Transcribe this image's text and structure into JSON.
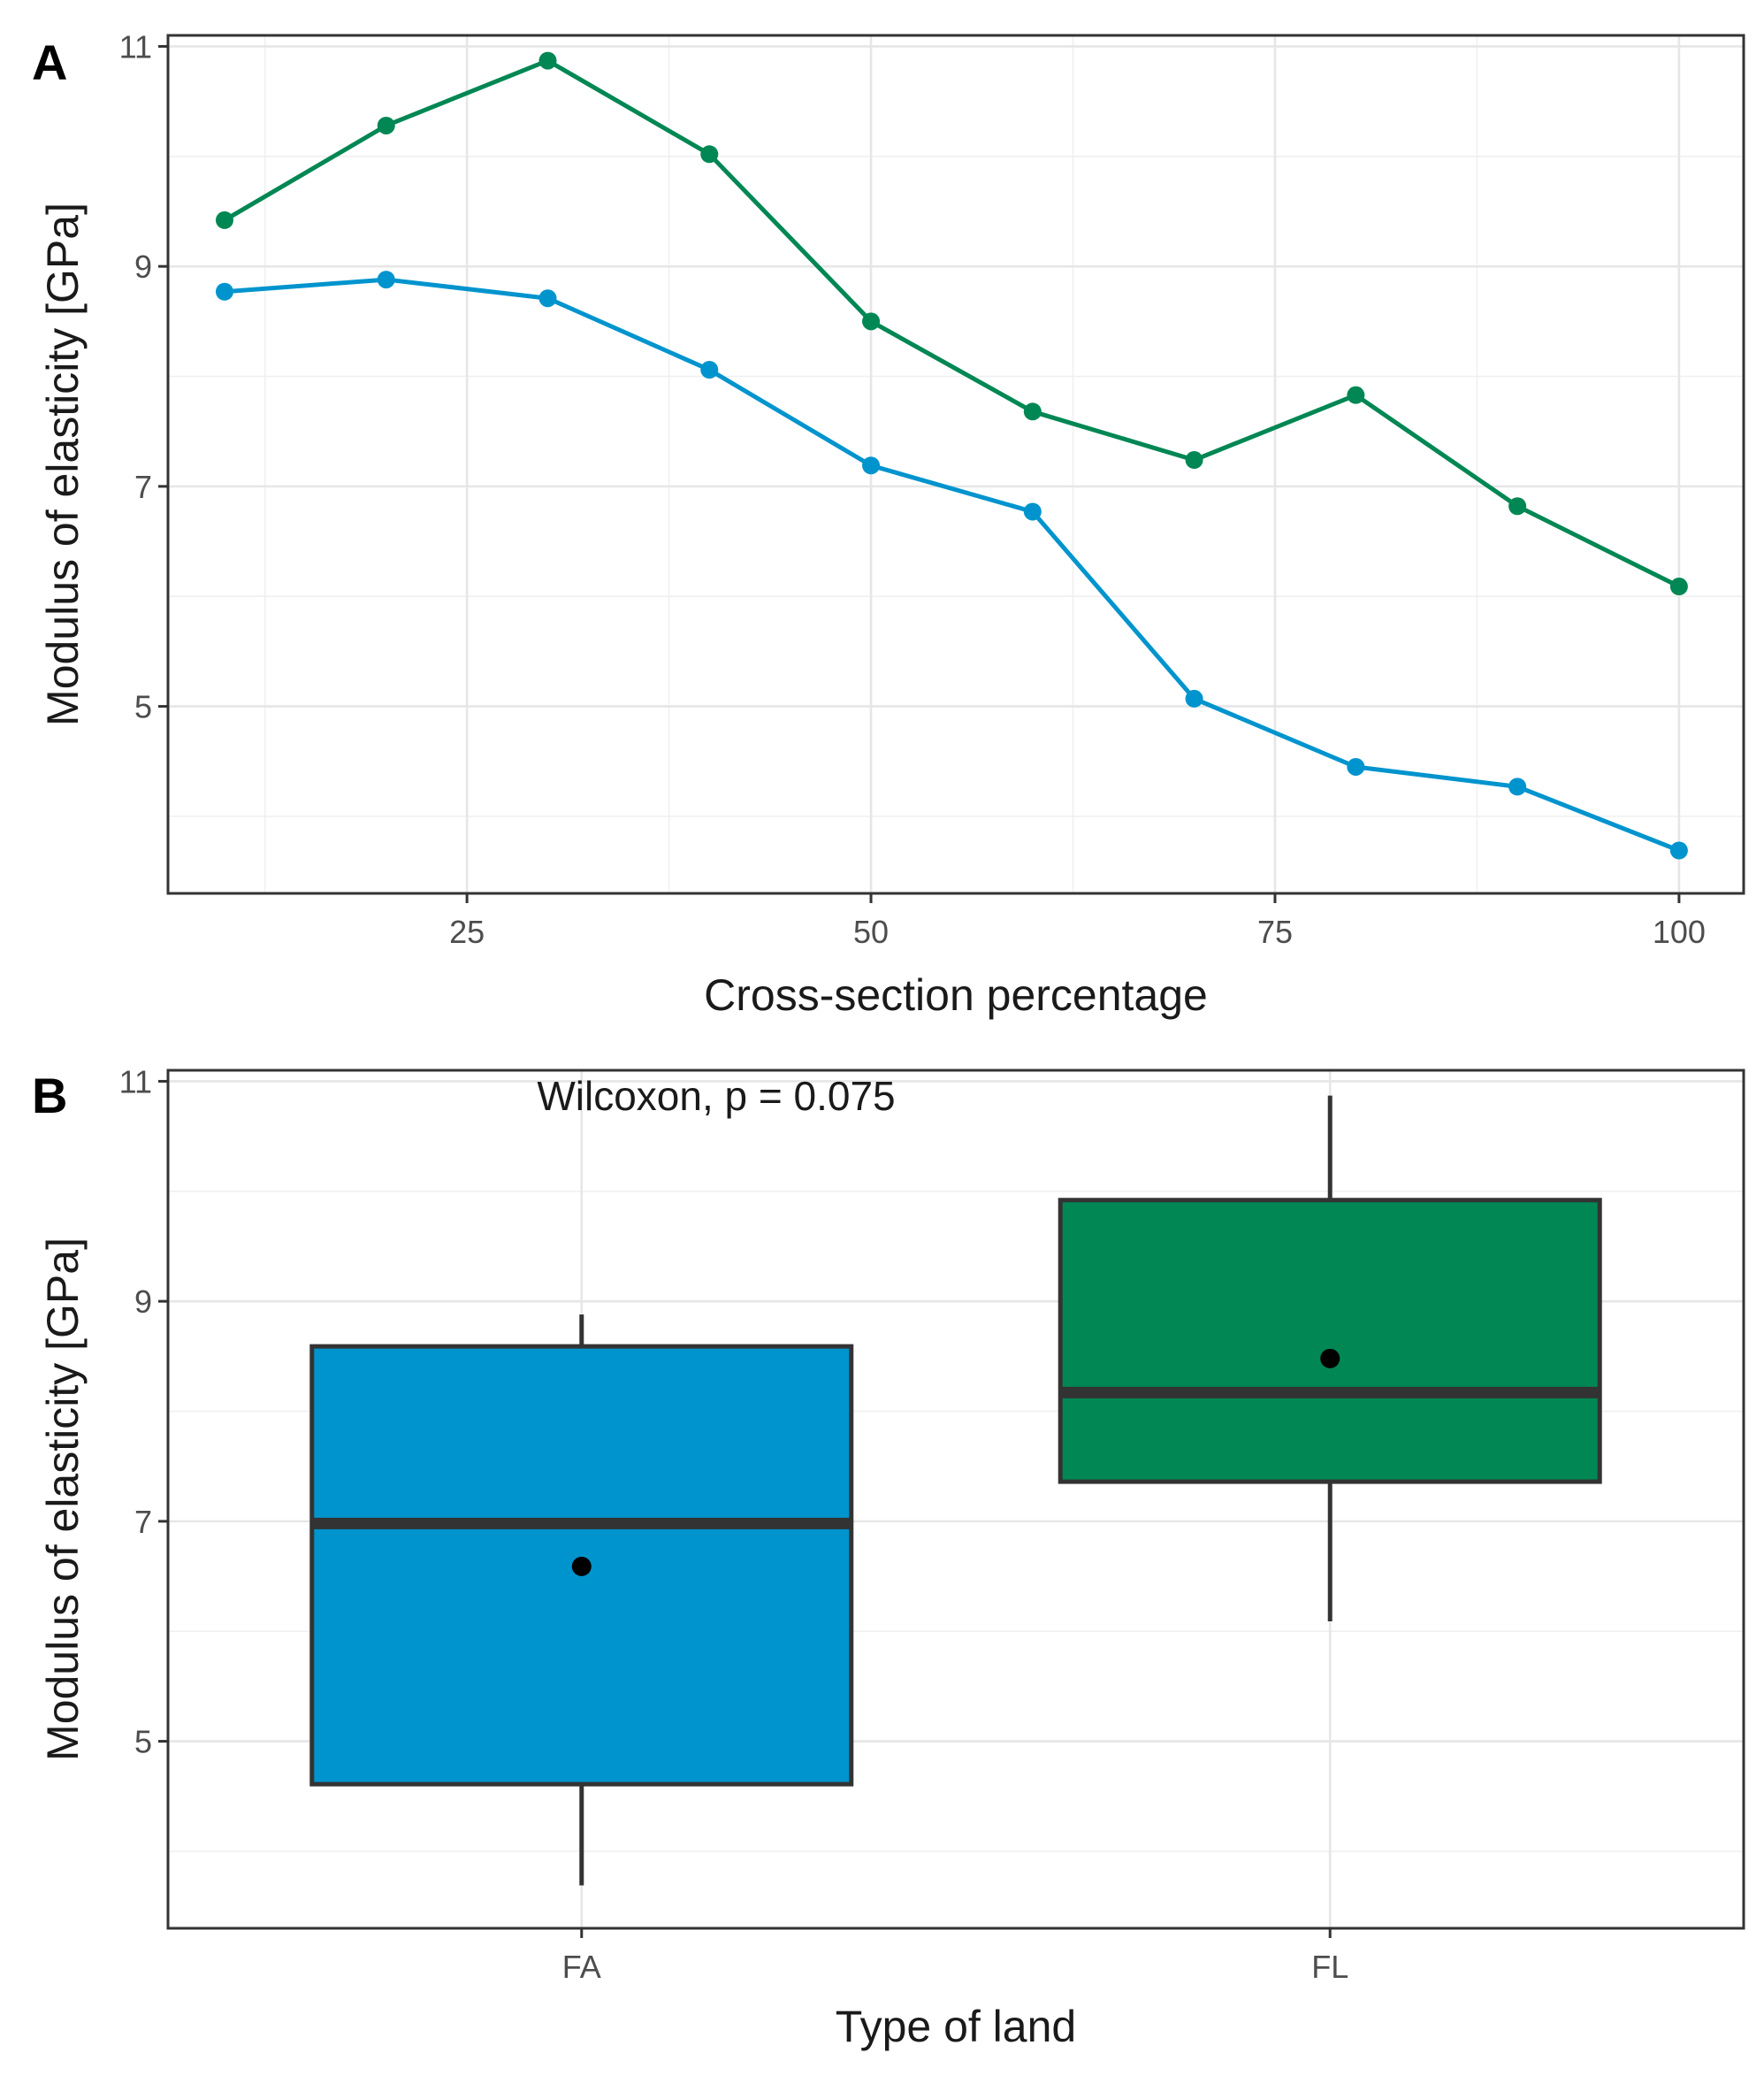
{
  "chart_data": [
    {
      "panel": "A",
      "type": "line",
      "xlabel": "Cross-section percentage",
      "ylabel": "Modulus of elasticity [GPa]",
      "xlim": [
        6.5,
        104
      ],
      "ylim": [
        3.3,
        11.1
      ],
      "xticks": [
        25,
        50,
        75,
        100
      ],
      "xtick_labels": [
        "25",
        "50",
        "75",
        "100"
      ],
      "yticks": [
        5,
        7,
        9,
        11
      ],
      "ytick_labels": [
        "5",
        "7",
        "9",
        "11"
      ],
      "grid": true,
      "x": [
        10,
        20,
        30,
        40,
        50,
        60,
        70,
        80,
        90,
        100
      ],
      "series": [
        {
          "name": "FL",
          "color": "#008754",
          "values": [
            9.42,
            10.28,
            10.87,
            10.02,
            8.5,
            7.68,
            7.24,
            7.83,
            6.82,
            6.09
          ]
        },
        {
          "name": "FA",
          "color": "#0094CE",
          "values": [
            8.77,
            8.88,
            8.71,
            8.06,
            7.19,
            6.77,
            5.07,
            4.45,
            4.27,
            3.69
          ]
        }
      ]
    },
    {
      "panel": "B",
      "type": "box",
      "xlabel": "Type of land",
      "ylabel": "Modulus of elasticity [GPa]",
      "ylim": [
        3.3,
        11.1
      ],
      "yticks": [
        5,
        7,
        9,
        11
      ],
      "ytick_labels": [
        "5",
        "7",
        "9",
        "11"
      ],
      "grid": true,
      "annotation": "Wilcoxon, p = 0.075",
      "categories": [
        "FA",
        "FL"
      ],
      "boxes": [
        {
          "category": "FA",
          "color": "#0094CE",
          "whisker_low": 3.69,
          "q1": 4.61,
          "median": 6.98,
          "q3": 8.59,
          "whisker_high": 8.88,
          "mean": 6.59
        },
        {
          "category": "FL",
          "color": "#008754",
          "whisker_low": 6.09,
          "q1": 7.36,
          "median": 8.17,
          "q3": 9.92,
          "whisker_high": 10.87,
          "mean": 8.48
        }
      ]
    }
  ]
}
